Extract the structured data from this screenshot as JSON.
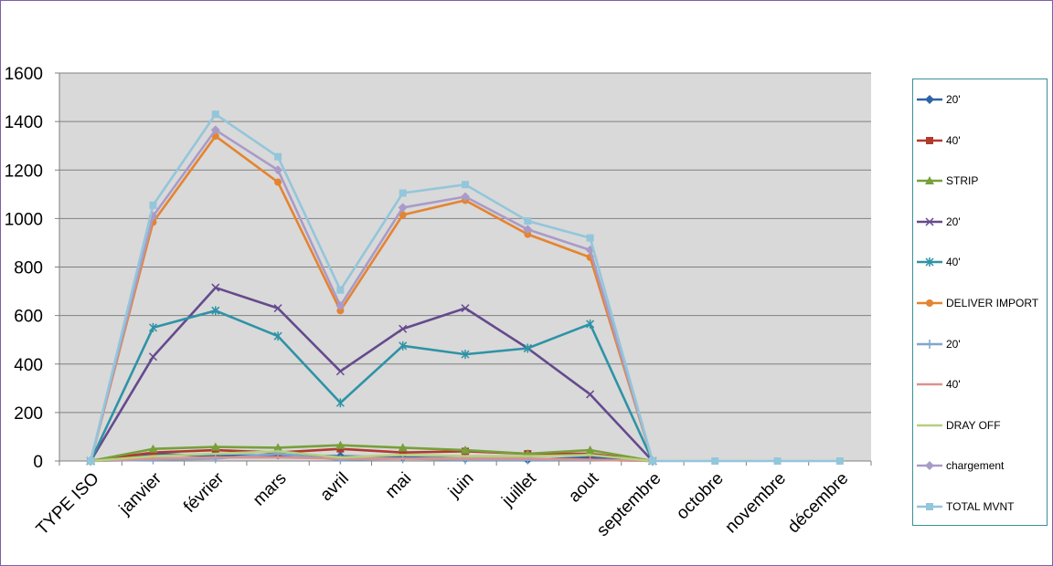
{
  "chart_data": {
    "type": "line",
    "categories": [
      "TYPE ISO",
      "janvier",
      "février",
      "mars",
      "avril",
      "mai",
      "juin",
      "juillet",
      "aout",
      "septembre",
      "octobre",
      "novembre",
      "décembre"
    ],
    "ylim": [
      0,
      1600
    ],
    "yticks": [
      0,
      200,
      400,
      600,
      800,
      1000,
      1200,
      1400,
      1600
    ],
    "grid": true,
    "plot_background": "#d9d9d9",
    "legend_position": "right",
    "title": "",
    "xlabel": "",
    "ylabel": "",
    "series": [
      {
        "name": "20'",
        "color": "#2e63a8",
        "marker": "diamond",
        "values": [
          0,
          30,
          20,
          25,
          20,
          15,
          10,
          5,
          15,
          0,
          null,
          null,
          null
        ]
      },
      {
        "name": "40'",
        "color": "#b03a2e",
        "marker": "square",
        "values": [
          0,
          35,
          45,
          35,
          50,
          35,
          40,
          30,
          30,
          0,
          null,
          null,
          null
        ]
      },
      {
        "name": "STRIP",
        "color": "#77a03a",
        "marker": "triangle",
        "values": [
          0,
          50,
          58,
          55,
          65,
          55,
          45,
          30,
          45,
          0,
          null,
          null,
          null
        ]
      },
      {
        "name": "20'",
        "color": "#654a8e",
        "marker": "x",
        "values": [
          0,
          430,
          715,
          630,
          370,
          545,
          630,
          465,
          275,
          0,
          null,
          null,
          null
        ]
      },
      {
        "name": "40'",
        "color": "#2e93a6",
        "marker": "star",
        "values": [
          0,
          550,
          620,
          515,
          240,
          475,
          440,
          465,
          565,
          0,
          null,
          null,
          null
        ]
      },
      {
        "name": "DELIVER IMPORT",
        "color": "#e58430",
        "marker": "circle",
        "values": [
          0,
          985,
          1340,
          1150,
          620,
          1015,
          1075,
          935,
          840,
          0,
          null,
          null,
          null
        ]
      },
      {
        "name": "20'",
        "color": "#7fa6cf",
        "marker": "plus",
        "values": [
          0,
          5,
          10,
          30,
          5,
          10,
          5,
          5,
          5,
          0,
          null,
          null,
          null
        ]
      },
      {
        "name": "40'",
        "color": "#d99290",
        "marker": "none",
        "values": [
          0,
          10,
          15,
          15,
          10,
          10,
          10,
          10,
          5,
          0,
          null,
          null,
          null
        ]
      },
      {
        "name": "DRAY OFF",
        "color": "#b5cf80",
        "marker": "none",
        "values": [
          0,
          20,
          30,
          40,
          15,
          25,
          20,
          20,
          25,
          0,
          null,
          null,
          null
        ]
      },
      {
        "name": "chargement",
        "color": "#a99bc8",
        "marker": "diamond",
        "values": [
          0,
          1010,
          1365,
          1200,
          640,
          1045,
          1090,
          955,
          870,
          0,
          null,
          null,
          null
        ]
      },
      {
        "name": "TOTAL MVNT",
        "color": "#93c6da",
        "marker": "square",
        "values": [
          0,
          1055,
          1430,
          1255,
          705,
          1105,
          1140,
          990,
          920,
          0,
          0,
          0,
          0
        ]
      }
    ]
  }
}
